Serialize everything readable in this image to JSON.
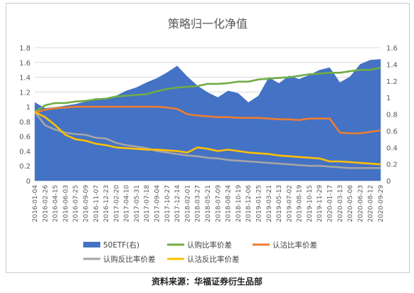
{
  "chart_data": {
    "type": "area",
    "title": "策略归一化净值",
    "x_labels": [
      "2016-01-04",
      "2016-02-26",
      "2016-04-15",
      "2016-06-03",
      "2016-07-25",
      "2016-09-09",
      "2016-11-07",
      "2016-12-23",
      "2017-02-20",
      "2017-04-10",
      "2017-05-31",
      "2017-07-18",
      "2017-09-04",
      "2017-10-27",
      "2017-12-14",
      "2018-02-01",
      "2018-03-27",
      "2018-05-21",
      "2018-07-09",
      "2018-08-24",
      "2018-10-19",
      "2018-12-06",
      "2019-01-25",
      "2019-03-21",
      "2019-05-13",
      "2019-07-02",
      "2019-08-19",
      "2019-10-15",
      "2019-11-29",
      "2020-01-17",
      "2020-03-13",
      "2020-05-06",
      "2020-06-23",
      "2020-08-12",
      "2020-09-29"
    ],
    "left_axis": {
      "ylim": [
        0,
        1.8
      ],
      "ticks": [
        "0",
        "0.2",
        "0.4",
        "0.6",
        "0.8",
        "1",
        "1.2",
        "1.4",
        "1.6",
        "1.8"
      ]
    },
    "right_axis": {
      "ylim": [
        0,
        1.6
      ],
      "ticks": [
        "0",
        "0.2",
        "0.4",
        "0.6",
        "0.8",
        "1",
        "1.2",
        "1.4",
        "1.6"
      ]
    },
    "series": [
      {
        "name": "50ETF(右)",
        "type": "area",
        "axis": "right",
        "color": "#4472c4",
        "values": [
          0.94,
          0.87,
          0.88,
          0.9,
          0.92,
          0.95,
          0.99,
          0.98,
          1.02,
          1.08,
          1.12,
          1.18,
          1.23,
          1.3,
          1.38,
          1.25,
          1.14,
          1.06,
          1.0,
          1.08,
          1.05,
          0.94,
          1.02,
          1.24,
          1.17,
          1.26,
          1.22,
          1.27,
          1.33,
          1.36,
          1.18,
          1.25,
          1.4,
          1.45,
          1.46
        ]
      },
      {
        "name": "认购比率价差",
        "type": "line",
        "axis": "left",
        "color": "#70ad47",
        "values": [
          0.93,
          1.02,
          1.05,
          1.05,
          1.07,
          1.08,
          1.1,
          1.11,
          1.14,
          1.15,
          1.16,
          1.17,
          1.21,
          1.24,
          1.26,
          1.27,
          1.28,
          1.31,
          1.31,
          1.32,
          1.34,
          1.34,
          1.37,
          1.38,
          1.39,
          1.4,
          1.42,
          1.44,
          1.45,
          1.46,
          1.46,
          1.48,
          1.5,
          1.5,
          1.53
        ]
      },
      {
        "name": "认沽比率价差",
        "type": "line",
        "axis": "left",
        "color": "#ed7d31",
        "values": [
          0.92,
          0.96,
          0.98,
          0.99,
          1.0,
          1.0,
          1.0,
          1.0,
          1.0,
          1.0,
          1.0,
          1.0,
          1.0,
          0.99,
          0.97,
          0.9,
          0.88,
          0.87,
          0.86,
          0.86,
          0.85,
          0.85,
          0.85,
          0.84,
          0.83,
          0.83,
          0.82,
          0.84,
          0.84,
          0.84,
          0.65,
          0.64,
          0.64,
          0.66,
          0.68
        ]
      },
      {
        "name": "认购反比率价差",
        "type": "line",
        "axis": "left",
        "color": "#a5a5a5",
        "values": [
          0.93,
          0.75,
          0.69,
          0.65,
          0.63,
          0.62,
          0.58,
          0.57,
          0.51,
          0.48,
          0.46,
          0.44,
          0.4,
          0.38,
          0.36,
          0.34,
          0.33,
          0.31,
          0.3,
          0.28,
          0.27,
          0.26,
          0.25,
          0.24,
          0.23,
          0.22,
          0.21,
          0.2,
          0.2,
          0.19,
          0.18,
          0.17,
          0.17,
          0.17,
          0.17
        ]
      },
      {
        "name": "认沽反比率价差",
        "type": "line",
        "axis": "left",
        "color": "#ffc000",
        "values": [
          0.93,
          0.86,
          0.75,
          0.62,
          0.56,
          0.54,
          0.5,
          0.48,
          0.45,
          0.44,
          0.43,
          0.42,
          0.42,
          0.41,
          0.4,
          0.38,
          0.45,
          0.43,
          0.4,
          0.42,
          0.4,
          0.38,
          0.37,
          0.36,
          0.34,
          0.33,
          0.32,
          0.31,
          0.3,
          0.26,
          0.26,
          0.25,
          0.24,
          0.23,
          0.22
        ]
      }
    ],
    "legend_position": "bottom",
    "grid": true
  },
  "footer": {
    "source": "资料来源：华福证券衍生品部"
  }
}
